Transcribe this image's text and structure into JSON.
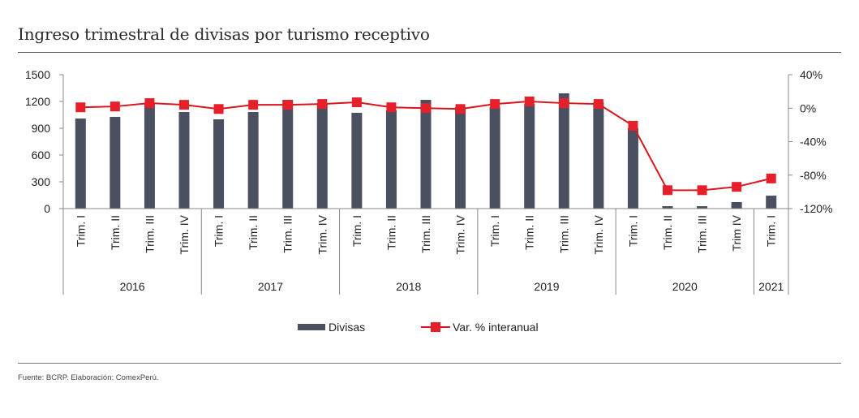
{
  "title": "Ingreso trimestral de divisas por turismo receptivo",
  "footer": "Fuente: BCRP. Elaboración: ComexPerú.",
  "colors": {
    "bar": "#4a5060",
    "line": "#d9161d",
    "marker": "#e5202a",
    "axis": "#888888"
  },
  "chart_data": {
    "type": "bar+line",
    "title": "Ingreso trimestral de divisas por turismo receptivo",
    "xlabel": "",
    "ylabel": "",
    "categories": [
      "Trim. I",
      "Trim. II",
      "Trim. III",
      "Trim. IV",
      "Trim. I",
      "Trim. II",
      "Trim. III",
      "Trim. IV",
      "Trim. I",
      "Trim. II",
      "Trim. III",
      "Trim. IV",
      "Trim. I",
      "Trim. II",
      "Trim. III",
      "Trim. IV",
      "Trim. I",
      "Trim. II",
      "Trim. III",
      "Trim IV",
      "Trim. I"
    ],
    "year_groups": [
      {
        "label": "2016",
        "count": 4
      },
      {
        "label": "2017",
        "count": 4
      },
      {
        "label": "2018",
        "count": 4
      },
      {
        "label": "2019",
        "count": 4
      },
      {
        "label": "2020",
        "count": 4
      },
      {
        "label": "2021",
        "count": 1
      }
    ],
    "series": [
      {
        "name": "Divisas",
        "type": "bar",
        "axis": "left",
        "values": [
          1009,
          1027,
          1173,
          1082,
          1000,
          1082,
          1218,
          1182,
          1073,
          1100,
          1218,
          1136,
          1136,
          1173,
          1291,
          1191,
          900,
          27,
          27,
          73,
          145
        ]
      },
      {
        "name": "Var. % interanual",
        "type": "line",
        "axis": "right",
        "values": [
          1,
          2,
          6,
          4,
          -1,
          4,
          4,
          5,
          7,
          1,
          0,
          -1,
          5,
          8,
          6,
          5,
          -21,
          -98,
          -98,
          -94,
          -84
        ]
      }
    ],
    "left_axis": {
      "min": 0,
      "max": 1500,
      "ticks": [
        0,
        300,
        600,
        900,
        1200,
        1500
      ],
      "tick_labels": [
        "0",
        "300",
        "600",
        "900",
        "1200",
        "1500"
      ]
    },
    "right_axis": {
      "min": -120,
      "max": 40,
      "ticks": [
        -120,
        -80,
        -40,
        0,
        40
      ],
      "tick_labels": [
        "-120%",
        "-80%",
        "-40%",
        "0%",
        "40%"
      ]
    },
    "grid": false,
    "legend": {
      "position": "bottom-center",
      "entries": [
        "Divisas",
        "Var. % interanual"
      ]
    }
  }
}
